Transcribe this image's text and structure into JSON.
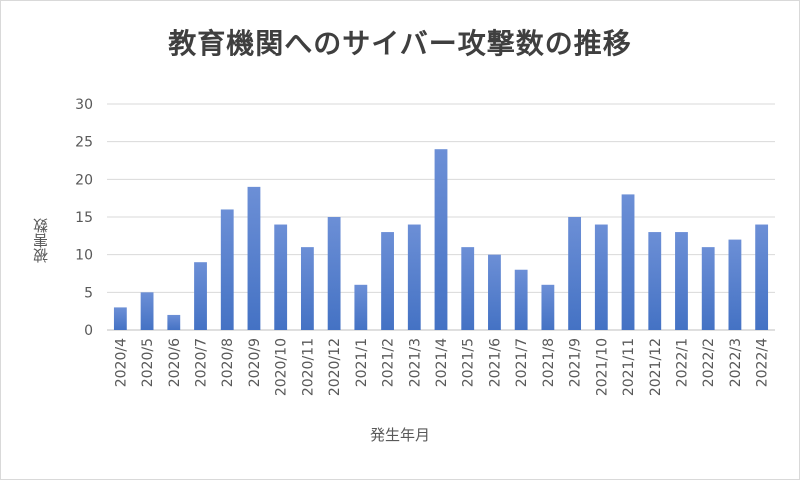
{
  "chart_data": {
    "type": "bar",
    "title": "教育機関へのサイバー攻撃数の推移",
    "xlabel": "発生年月",
    "ylabel": "被害数",
    "ylim": [
      0,
      30
    ],
    "yticks": [
      0,
      5,
      10,
      15,
      20,
      25,
      30
    ],
    "grid": true,
    "bar_color": "#4472c4",
    "bar_color_light": "#6c8fd6",
    "categories": [
      "2020/4",
      "2020/5",
      "2020/6",
      "2020/7",
      "2020/8",
      "2020/9",
      "2020/10",
      "2020/11",
      "2020/12",
      "2021/1",
      "2021/2",
      "2021/3",
      "2021/4",
      "2021/5",
      "2021/6",
      "2021/7",
      "2021/8",
      "2021/9",
      "2021/10",
      "2021/11",
      "2021/12",
      "2022/1",
      "2022/2",
      "2022/3",
      "2022/4"
    ],
    "values": [
      3,
      5,
      2,
      9,
      16,
      19,
      14,
      11,
      15,
      6,
      13,
      14,
      24,
      11,
      10,
      8,
      6,
      15,
      14,
      18,
      13,
      13,
      11,
      12,
      14
    ]
  }
}
